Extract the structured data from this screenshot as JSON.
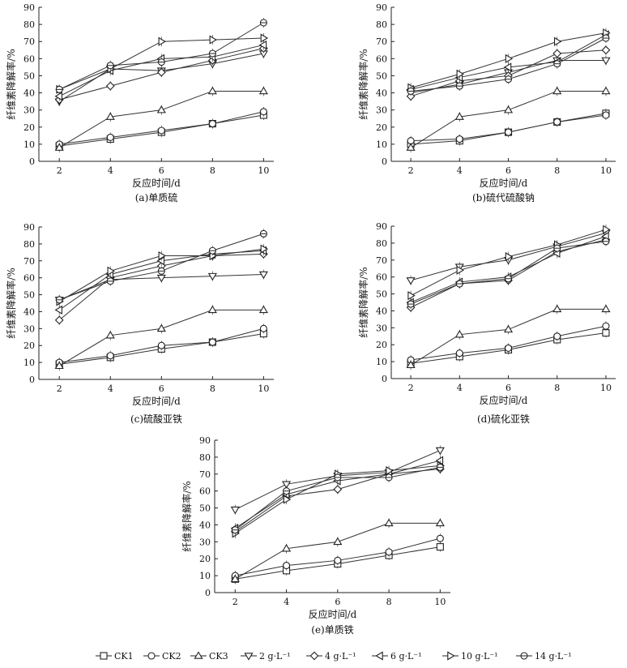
{
  "chart_data": [
    {
      "id": "a",
      "type": "line",
      "caption": "(a)单质硫",
      "xlabel": "反应时间/d",
      "ylabel": "纤维素降解率/%",
      "x": [
        2,
        4,
        6,
        8,
        10
      ],
      "xlim": [
        1.2,
        10.4
      ],
      "ylim": [
        0,
        90
      ],
      "xticks": [
        "2",
        "4",
        "6",
        "8",
        "10"
      ],
      "yticks": [
        "0",
        "10",
        "20",
        "30",
        "40",
        "50",
        "60",
        "70",
        "80",
        "90"
      ],
      "series": [
        {
          "name": "CK1",
          "values": [
            9,
            13,
            17,
            22,
            27
          ]
        },
        {
          "name": "CK2",
          "values": [
            10,
            14,
            18,
            22,
            29
          ]
        },
        {
          "name": "CK3",
          "values": [
            8,
            26,
            30,
            41,
            41
          ]
        },
        {
          "name": "2 g·L⁻¹",
          "values": [
            35,
            54,
            53,
            57,
            63
          ]
        },
        {
          "name": "4 g·L⁻¹",
          "values": [
            36,
            44,
            52,
            59,
            66
          ]
        },
        {
          "name": "6 g·L⁻¹",
          "values": [
            38,
            53,
            60,
            61,
            68
          ]
        },
        {
          "name": "10 g·L⁻¹",
          "values": [
            42,
            54,
            70,
            71,
            72
          ]
        },
        {
          "name": "14 g·L⁻¹",
          "values": [
            42,
            56,
            58,
            63,
            81
          ]
        }
      ]
    },
    {
      "id": "b",
      "type": "line",
      "caption": "(b)硫代硫酸钠",
      "xlabel": "反应时间/d",
      "ylabel": "纤维素降解率/%",
      "x": [
        2,
        4,
        6,
        8,
        10
      ],
      "xlim": [
        1.2,
        10.4
      ],
      "ylim": [
        0,
        90
      ],
      "xticks": [
        "2",
        "4",
        "6",
        "8",
        "10"
      ],
      "yticks": [
        "0",
        "10",
        "20",
        "30",
        "40",
        "50",
        "60",
        "70",
        "80",
        "90"
      ],
      "series": [
        {
          "name": "CK1",
          "values": [
            10,
            12,
            17,
            23,
            28
          ]
        },
        {
          "name": "CK2",
          "values": [
            12,
            13,
            17,
            23,
            27
          ]
        },
        {
          "name": "CK3",
          "values": [
            8,
            26,
            30,
            41,
            41
          ]
        },
        {
          "name": "2 g·L⁻¹",
          "values": [
            40,
            45,
            52,
            59,
            59
          ]
        },
        {
          "name": "4 g·L⁻¹",
          "values": [
            38,
            47,
            50,
            63,
            65
          ]
        },
        {
          "name": "6 g·L⁻¹",
          "values": [
            42,
            49,
            55,
            58,
            74
          ]
        },
        {
          "name": "10 g·L⁻¹",
          "values": [
            43,
            51,
            60,
            70,
            75
          ]
        },
        {
          "name": "14 g·L⁻¹",
          "values": [
            41,
            44,
            48,
            57,
            72
          ]
        }
      ]
    },
    {
      "id": "c",
      "type": "line",
      "caption": "(c)硫酸亚铁",
      "xlabel": "反应时间/d",
      "ylabel": "纤维素降解率/%",
      "x": [
        2,
        4,
        6,
        8,
        10
      ],
      "xlim": [
        1.2,
        10.4
      ],
      "ylim": [
        0,
        90
      ],
      "xticks": [
        "2",
        "4",
        "6",
        "8",
        "10"
      ],
      "yticks": [
        "0",
        "10",
        "20",
        "30",
        "40",
        "50",
        "60",
        "70",
        "80",
        "90"
      ],
      "series": [
        {
          "name": "CK1",
          "values": [
            9,
            13,
            18,
            22,
            27
          ]
        },
        {
          "name": "CK2",
          "values": [
            10,
            14,
            20,
            22,
            30
          ]
        },
        {
          "name": "CK3",
          "values": [
            8,
            26,
            30,
            41,
            41
          ]
        },
        {
          "name": "2 g·L⁻¹",
          "values": [
            47,
            59,
            60,
            61,
            62
          ]
        },
        {
          "name": "4 g·L⁻¹",
          "values": [
            35,
            60,
            67,
            73,
            74
          ]
        },
        {
          "name": "6 g·L⁻¹",
          "values": [
            41,
            62,
            70,
            74,
            76
          ]
        },
        {
          "name": "10 g·L⁻¹",
          "values": [
            46,
            64,
            73,
            73,
            77
          ]
        },
        {
          "name": "14 g·L⁻¹",
          "values": [
            47,
            58,
            64,
            76,
            86
          ]
        }
      ]
    },
    {
      "id": "d",
      "type": "line",
      "caption": "(d)硫化亚铁",
      "xlabel": "反应时间/d",
      "ylabel": "纤维素降解率/%",
      "x": [
        2,
        4,
        6,
        8,
        10
      ],
      "xlim": [
        1.2,
        10.4
      ],
      "ylim": [
        0,
        90
      ],
      "xticks": [
        "2",
        "4",
        "6",
        "8",
        "10"
      ],
      "yticks": [
        "0",
        "10",
        "20",
        "30",
        "40",
        "50",
        "60",
        "70",
        "80",
        "90"
      ],
      "series": [
        {
          "name": "CK1",
          "values": [
            9,
            13,
            17,
            23,
            27
          ]
        },
        {
          "name": "CK2",
          "values": [
            11,
            15,
            18,
            25,
            31
          ]
        },
        {
          "name": "CK3",
          "values": [
            8,
            26,
            29,
            41,
            41
          ]
        },
        {
          "name": "2 g·L⁻¹",
          "values": [
            58,
            66,
            70,
            78,
            86
          ]
        },
        {
          "name": "4 g·L⁻¹",
          "values": [
            42,
            56,
            58,
            75,
            82
          ]
        },
        {
          "name": "6 g·L⁻¹",
          "values": [
            45,
            57,
            60,
            74,
            84
          ]
        },
        {
          "name": "10 g·L⁻¹",
          "values": [
            49,
            64,
            72,
            79,
            88
          ]
        },
        {
          "name": "14 g·L⁻¹",
          "values": [
            44,
            56,
            59,
            77,
            81
          ]
        }
      ]
    },
    {
      "id": "e",
      "type": "line",
      "caption": "(e)单质铁",
      "xlabel": "反应时间/d",
      "ylabel": "纤维素降解率/%",
      "x": [
        2,
        4,
        6,
        8,
        10
      ],
      "xlim": [
        1.2,
        10.4
      ],
      "ylim": [
        0,
        90
      ],
      "xticks": [
        "2",
        "4",
        "6",
        "8",
        "10"
      ],
      "yticks": [
        "0",
        "10",
        "20",
        "30",
        "40",
        "50",
        "60",
        "70",
        "80",
        "90"
      ],
      "series": [
        {
          "name": "CK1",
          "values": [
            8,
            13,
            17,
            22,
            27
          ]
        },
        {
          "name": "CK2",
          "values": [
            10,
            16,
            19,
            24,
            32
          ]
        },
        {
          "name": "CK3",
          "values": [
            8,
            26,
            30,
            41,
            41
          ]
        },
        {
          "name": "2 g·L⁻¹",
          "values": [
            49,
            64,
            69,
            71,
            84
          ]
        },
        {
          "name": "4 g·L⁻¹",
          "values": [
            36,
            57,
            61,
            70,
            73
          ]
        },
        {
          "name": "6 g·L⁻¹",
          "values": [
            38,
            58,
            66,
            70,
            78
          ]
        },
        {
          "name": "10 g·L⁻¹",
          "values": [
            35,
            55,
            70,
            72,
            75
          ]
        },
        {
          "name": "14 g·L⁻¹",
          "values": [
            37,
            60,
            68,
            68,
            74
          ]
        }
      ]
    }
  ],
  "legend": {
    "entries": [
      {
        "label": "CK1",
        "marker": "square"
      },
      {
        "label": "CK2",
        "marker": "circle"
      },
      {
        "label": "CK3",
        "marker": "triangle-up"
      },
      {
        "label": "2 g·L⁻¹",
        "marker": "triangle-down"
      },
      {
        "label": "4 g·L⁻¹",
        "marker": "diamond"
      },
      {
        "label": "6 g·L⁻¹",
        "marker": "triangle-left"
      },
      {
        "label": "10 g·L⁻¹",
        "marker": "triangle-right"
      },
      {
        "label": "14 g·L⁻¹",
        "marker": "circle-dot"
      }
    ]
  }
}
